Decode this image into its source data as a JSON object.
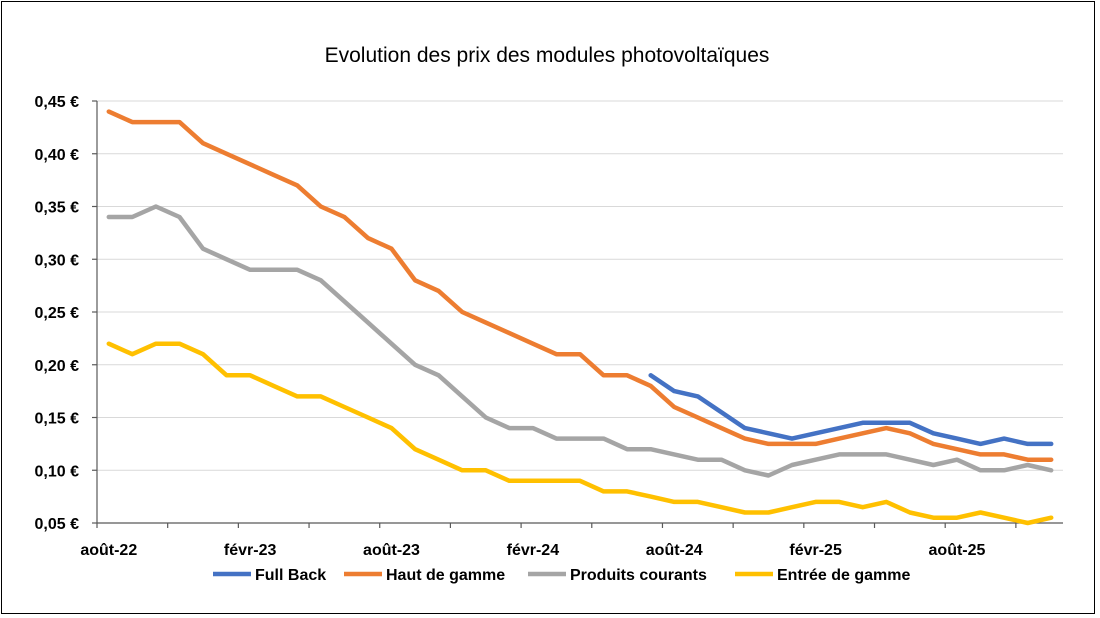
{
  "chart_data": {
    "type": "line",
    "title": "Evolution des prix des modules photovoltaïques",
    "xlabel": "",
    "ylabel": "",
    "x": [
      "2022-08",
      "2022-09",
      "2022-10",
      "2022-11",
      "2022-12",
      "2023-01",
      "2023-02",
      "2023-03",
      "2023-04",
      "2023-05",
      "2023-06",
      "2023-07",
      "2023-08",
      "2023-09",
      "2023-10",
      "2023-11",
      "2023-12",
      "2024-01",
      "2024-02",
      "2024-03",
      "2024-04",
      "2024-05",
      "2024-06",
      "2024-07",
      "2024-08",
      "2024-09",
      "2024-10",
      "2024-11",
      "2024-12",
      "2025-01",
      "2025-02",
      "2025-03",
      "2025-04",
      "2025-05",
      "2025-06",
      "2025-07",
      "2025-08",
      "2025-09",
      "2025-10",
      "2025-11",
      "2025-12"
    ],
    "x_tick_labels": [
      "août-22",
      "févr-23",
      "août-23",
      "févr-24",
      "août-24",
      "févr-25",
      "août-25"
    ],
    "y_tick_labels": [
      "0,05 €",
      "0,10 €",
      "0,15 €",
      "0,20 €",
      "0,25 €",
      "0,30 €",
      "0,35 €",
      "0,40 €",
      "0,45 €"
    ],
    "ylim": [
      0.05,
      0.45
    ],
    "y_ticks": [
      0.05,
      0.1,
      0.15,
      0.2,
      0.25,
      0.3,
      0.35,
      0.4,
      0.45
    ],
    "grid": true,
    "legend_position": "bottom",
    "series": [
      {
        "name": "Full Back",
        "color": "#4472c4",
        "values": [
          null,
          null,
          null,
          null,
          null,
          null,
          null,
          null,
          null,
          null,
          null,
          null,
          null,
          null,
          null,
          null,
          null,
          null,
          null,
          null,
          null,
          null,
          null,
          0.19,
          0.175,
          0.17,
          0.155,
          0.14,
          0.135,
          0.13,
          0.135,
          0.14,
          0.145,
          0.145,
          0.145,
          0.135,
          0.13,
          0.125,
          0.13,
          0.125,
          0.125
        ]
      },
      {
        "name": "Haut de gamme",
        "color": "#ed7d31",
        "values": [
          0.44,
          0.43,
          0.43,
          0.43,
          0.41,
          0.4,
          0.39,
          0.38,
          0.37,
          0.35,
          0.34,
          0.32,
          0.31,
          0.28,
          0.27,
          0.25,
          0.24,
          0.23,
          0.22,
          0.21,
          0.21,
          0.19,
          0.19,
          0.18,
          0.16,
          0.15,
          0.14,
          0.13,
          0.125,
          0.125,
          0.125,
          0.13,
          0.135,
          0.14,
          0.135,
          0.125,
          0.12,
          0.115,
          0.115,
          0.11,
          0.11
        ]
      },
      {
        "name": "Produits courants",
        "color": "#a5a5a5",
        "values": [
          0.34,
          0.34,
          0.35,
          0.34,
          0.31,
          0.3,
          0.29,
          0.29,
          0.29,
          0.28,
          0.26,
          0.24,
          0.22,
          0.2,
          0.19,
          0.17,
          0.15,
          0.14,
          0.14,
          0.13,
          0.13,
          0.13,
          0.12,
          0.12,
          0.115,
          0.11,
          0.11,
          0.1,
          0.095,
          0.105,
          0.11,
          0.115,
          0.115,
          0.115,
          0.11,
          0.105,
          0.11,
          0.1,
          0.1,
          0.105,
          0.1
        ]
      },
      {
        "name": "Entrée de gamme",
        "color": "#ffc000",
        "values": [
          0.22,
          0.21,
          0.22,
          0.22,
          0.21,
          0.19,
          0.19,
          0.18,
          0.17,
          0.17,
          0.16,
          0.15,
          0.14,
          0.12,
          0.11,
          0.1,
          0.1,
          0.09,
          0.09,
          0.09,
          0.09,
          0.08,
          0.08,
          0.075,
          0.07,
          0.07,
          0.065,
          0.06,
          0.06,
          0.065,
          0.07,
          0.07,
          0.065,
          0.07,
          0.06,
          0.055,
          0.055,
          0.06,
          0.055,
          0.05,
          0.055
        ]
      }
    ]
  }
}
